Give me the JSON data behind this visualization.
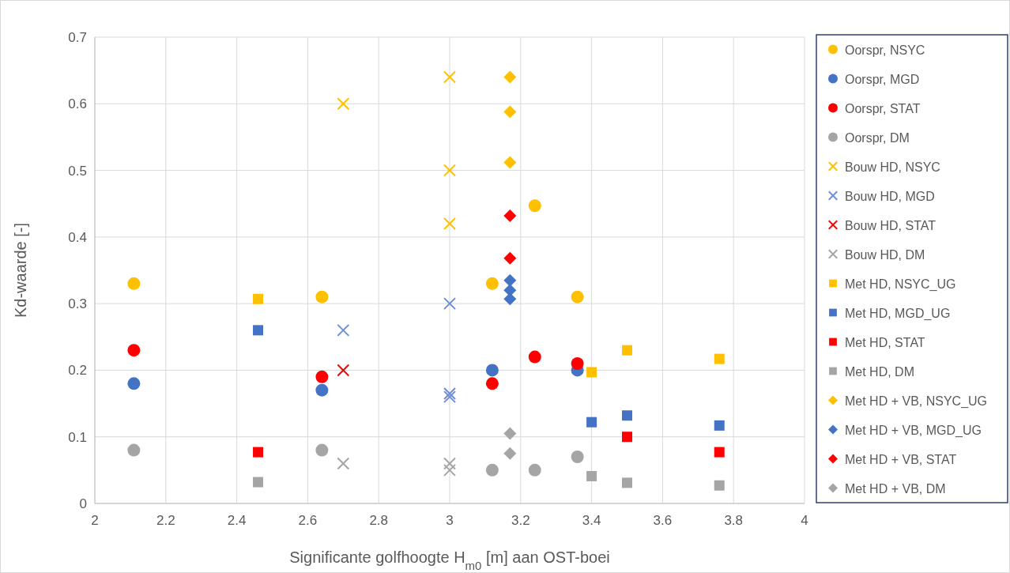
{
  "chart_data": {
    "type": "scatter",
    "xlabel": "Significante golfhoogte H$_{m0}$ [m] aan OST-boei",
    "ylabel": "Kd-waarde [-]",
    "xlim": [
      2,
      4
    ],
    "xticks": [
      2,
      2.2,
      2.4,
      2.6,
      2.8,
      3,
      3.2,
      3.4,
      3.6,
      3.8,
      4
    ],
    "ylim": [
      0,
      0.7
    ],
    "yticks": [
      0,
      0.1,
      0.2,
      0.3,
      0.4,
      0.5,
      0.6,
      0.7
    ],
    "grid": true,
    "legend": "right",
    "series": [
      {
        "name": "Oorspr, NSYC",
        "color": "#ffc000",
        "marker": "circle",
        "x": [
          2.11,
          2.64,
          3.12,
          3.24,
          3.36
        ],
        "values": [
          0.33,
          0.31,
          0.33,
          0.447,
          0.31
        ]
      },
      {
        "name": "Oorspr, MGD",
        "color": "#4472c4",
        "marker": "circle",
        "x": [
          2.11,
          2.64,
          3.12,
          3.36
        ],
        "values": [
          0.18,
          0.17,
          0.2,
          0.2
        ]
      },
      {
        "name": "Oorspr, STAT",
        "color": "#ff0000",
        "marker": "circle",
        "x": [
          2.11,
          2.64,
          3.12,
          3.24,
          3.36
        ],
        "values": [
          0.23,
          0.19,
          0.18,
          0.22,
          0.21
        ]
      },
      {
        "name": "Oorspr, DM",
        "color": "#a5a5a5",
        "marker": "circle",
        "x": [
          2.11,
          2.64,
          3.12,
          3.24,
          3.36
        ],
        "values": [
          0.08,
          0.08,
          0.05,
          0.05,
          0.07
        ]
      },
      {
        "name": "Bouw HD, NSYC",
        "color": "#ffc000",
        "marker": "cross",
        "x": [
          2.7,
          3,
          3,
          3
        ],
        "values": [
          0.6,
          0.64,
          0.5,
          0.42
        ]
      },
      {
        "name": "Bouw HD, MGD",
        "color": "#6e8fd6",
        "marker": "cross",
        "x": [
          2.7,
          3,
          3,
          3
        ],
        "values": [
          0.26,
          0.3,
          0.165,
          0.16
        ]
      },
      {
        "name": "Bouw HD, STAT",
        "color": "#ff0000",
        "marker": "cross",
        "x": [
          2.7
        ],
        "values": [
          0.2
        ]
      },
      {
        "name": "Bouw HD, DM",
        "color": "#a5a5a5",
        "marker": "cross",
        "x": [
          2.7,
          3,
          3
        ],
        "values": [
          0.06,
          0.06,
          0.05
        ]
      },
      {
        "name": "Met HD, NSYC_UG",
        "color": "#ffc000",
        "marker": "square",
        "x": [
          2.46,
          3.4,
          3.5,
          3.76
        ],
        "values": [
          0.307,
          0.197,
          0.23,
          0.217
        ]
      },
      {
        "name": "Met HD, MGD_UG",
        "color": "#4472c4",
        "marker": "square",
        "x": [
          2.46,
          3.4,
          3.5,
          3.76
        ],
        "values": [
          0.26,
          0.122,
          0.132,
          0.117
        ]
      },
      {
        "name": "Met HD, STAT",
        "color": "#ff0000",
        "marker": "square",
        "x": [
          2.46,
          3.5,
          3.76
        ],
        "values": [
          0.077,
          0.1,
          0.077
        ]
      },
      {
        "name": "Met HD, DM",
        "color": "#a5a5a5",
        "marker": "square",
        "x": [
          2.46,
          3.4,
          3.5,
          3.76
        ],
        "values": [
          0.032,
          0.041,
          0.031,
          0.027
        ]
      },
      {
        "name": "Met HD + VB, NSYC_UG",
        "color": "#ffc000",
        "marker": "diamond",
        "x": [
          3.17,
          3.17,
          3.17
        ],
        "values": [
          0.64,
          0.588,
          0.512
        ]
      },
      {
        "name": "Met HD + VB, MGD_UG",
        "color": "#4472c4",
        "marker": "diamond",
        "x": [
          3.17,
          3.17,
          3.17
        ],
        "values": [
          0.335,
          0.32,
          0.307
        ]
      },
      {
        "name": "Met HD + VB, STAT",
        "color": "#ff0000",
        "marker": "diamond",
        "x": [
          3.17,
          3.17
        ],
        "values": [
          0.432,
          0.368
        ]
      },
      {
        "name": "Met HD + VB, DM",
        "color": "#a5a5a5",
        "marker": "diamond",
        "x": [
          3.17,
          3.17
        ],
        "values": [
          0.105,
          0.075
        ]
      }
    ]
  }
}
